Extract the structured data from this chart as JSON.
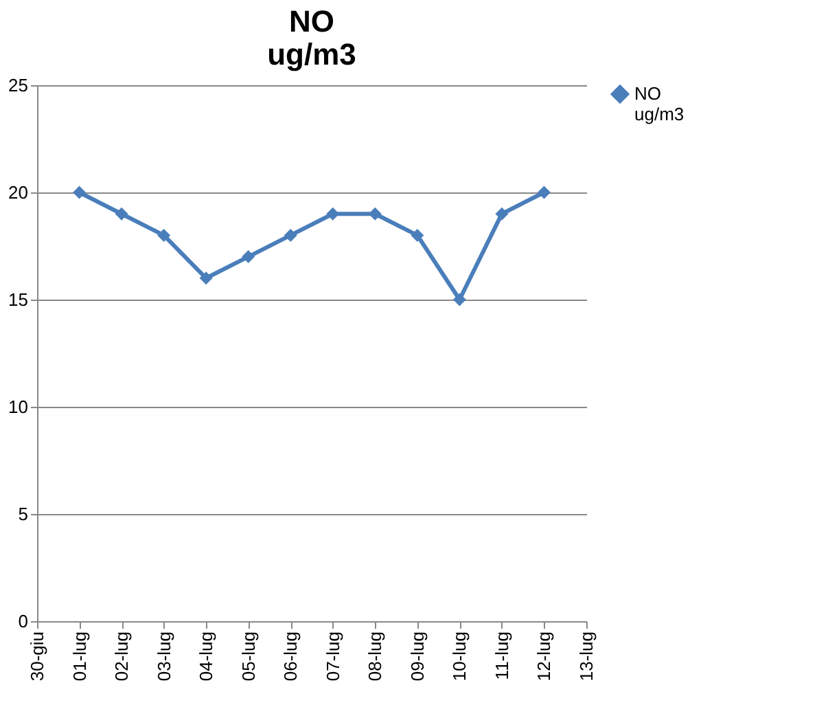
{
  "chart_data": {
    "type": "line",
    "title": "NO\nug/m3",
    "categories": [
      "30-giu",
      "01-lug",
      "02-lug",
      "03-lug",
      "04-lug",
      "05-lug",
      "06-lug",
      "07-lug",
      "08-lug",
      "09-lug",
      "10-lug",
      "11-lug",
      "12-lug",
      "13-lug"
    ],
    "series": [
      {
        "name": "NO\nug/m3",
        "color": "#4a7ebb",
        "values": [
          null,
          20,
          19,
          18,
          16,
          17,
          18,
          19,
          19,
          18,
          15,
          19,
          20,
          null
        ]
      }
    ],
    "ylim": [
      0,
      25
    ],
    "yticks": [
      0,
      5,
      10,
      15,
      20,
      25
    ],
    "grid": "y",
    "legend": "right",
    "marker": "diamond",
    "line_style": "solid"
  }
}
